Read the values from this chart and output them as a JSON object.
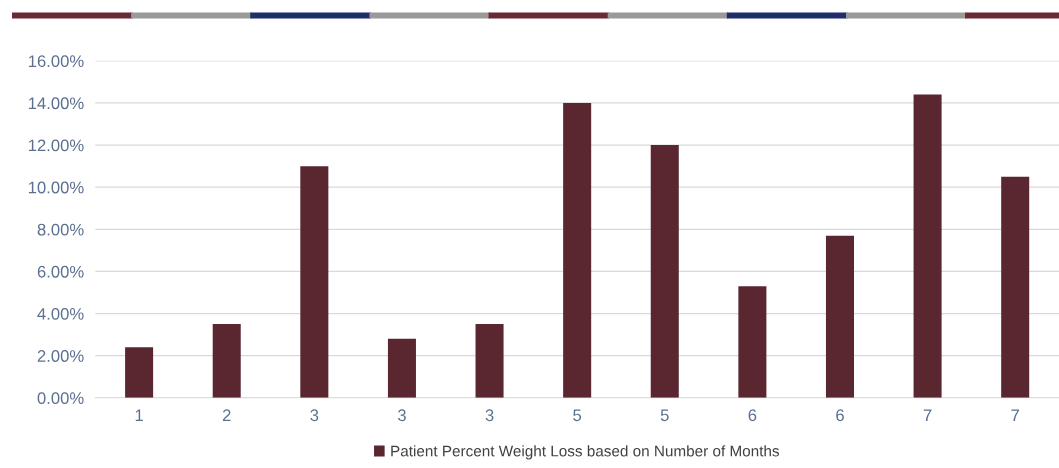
{
  "chart_data": {
    "type": "bar",
    "categories": [
      "1",
      "2",
      "3",
      "3",
      "3",
      "5",
      "5",
      "6",
      "6",
      "7",
      "7"
    ],
    "series": [
      {
        "name": "Patient Percent Weight Loss based on Number of Months",
        "color": "#5a2630",
        "values": [
          2.4,
          3.5,
          11.0,
          2.8,
          3.5,
          14.0,
          12.0,
          5.3,
          7.7,
          14.4,
          10.5
        ]
      }
    ],
    "ylim": [
      0,
      16
    ],
    "yticks": [
      {
        "value": 0,
        "label": "0.00%"
      },
      {
        "value": 2,
        "label": "2.00%"
      },
      {
        "value": 4,
        "label": "4.00%"
      },
      {
        "value": 6,
        "label": "6.00%"
      },
      {
        "value": 8,
        "label": "8.00%"
      },
      {
        "value": 10,
        "label": "10.00%"
      },
      {
        "value": 12,
        "label": "12.00%"
      },
      {
        "value": 14,
        "label": "14.00%"
      },
      {
        "value": 16,
        "label": "16.00%"
      }
    ],
    "grid": "y",
    "legend": "bottom"
  }
}
